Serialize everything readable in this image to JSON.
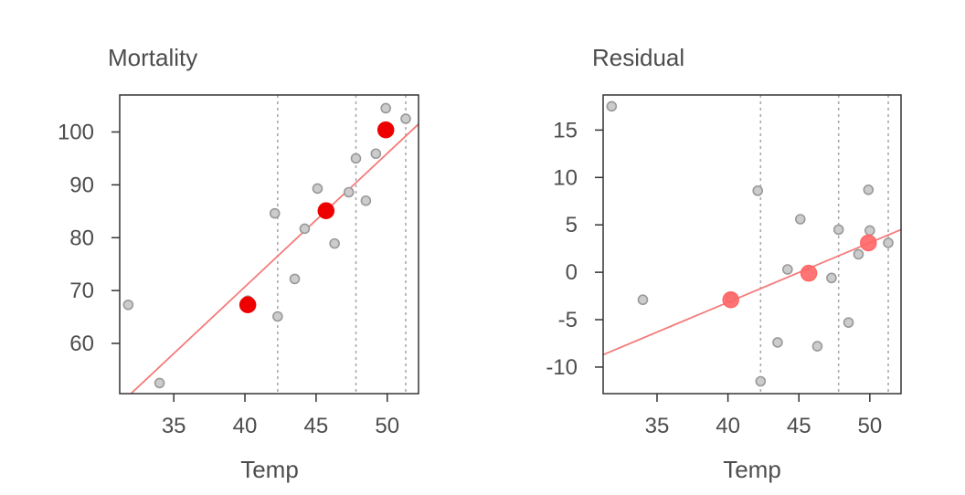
{
  "colors": {
    "fit_line": "#f47b7b",
    "point_fill": "#cccccc",
    "point_stroke": "#999999",
    "highlight_mortality": "#ee0000",
    "highlight_residual": "#ff6666",
    "vline": "#aaaaaa",
    "frame": "#333333"
  },
  "chart_data": [
    {
      "type": "scatter",
      "title": "Mortality",
      "xlabel": "Temp",
      "ylabel": "",
      "xlim": [
        31.2,
        52.2
      ],
      "ylim": [
        50.5,
        107
      ],
      "xticks": [
        35,
        40,
        45,
        50
      ],
      "yticks": [
        60,
        70,
        80,
        90,
        100
      ],
      "vlines": [
        42.3,
        47.8,
        51.3
      ],
      "fit_line": {
        "x": [
          31.2,
          52.2
        ],
        "y": [
          48.5,
          101.5
        ]
      },
      "points": {
        "x": [
          31.8,
          34.0,
          40.2,
          42.1,
          42.3,
          43.5,
          44.2,
          45.1,
          46.3,
          47.3,
          47.8,
          48.5,
          49.2,
          49.9,
          51.3
        ],
        "y": [
          67.3,
          52.5,
          68.1,
          84.6,
          65.1,
          72.2,
          81.7,
          89.3,
          78.9,
          88.6,
          95.0,
          87.0,
          95.9,
          104.5,
          102.5
        ]
      },
      "highlight": {
        "x": [
          40.2,
          45.7,
          49.9
        ],
        "y": [
          67.3,
          85.1,
          100.4
        ]
      }
    },
    {
      "type": "scatter",
      "title": "Residual",
      "xlabel": "Temp",
      "ylabel": "",
      "xlim": [
        31.2,
        52.2
      ],
      "ylim": [
        -12.8,
        18.7
      ],
      "xticks": [
        35,
        40,
        45,
        50
      ],
      "yticks": [
        15,
        10,
        5,
        0,
        -5,
        -10
      ],
      "vlines": [
        42.3,
        47.8,
        51.3
      ],
      "fit_line": {
        "x": [
          31.2,
          52.2
        ],
        "y": [
          -8.7,
          4.5
        ]
      },
      "points": {
        "x": [
          31.8,
          34.0,
          40.2,
          42.1,
          42.3,
          43.5,
          44.2,
          45.1,
          46.3,
          47.3,
          47.8,
          48.5,
          49.2,
          49.9,
          50.0,
          51.3
        ],
        "y": [
          17.5,
          -2.9,
          -2.7,
          8.6,
          -11.5,
          -7.4,
          0.3,
          5.6,
          -7.8,
          -0.6,
          4.5,
          -5.3,
          1.9,
          8.7,
          4.4,
          3.1
        ]
      },
      "highlight": {
        "x": [
          40.2,
          45.7,
          49.9
        ],
        "y": [
          -2.9,
          -0.1,
          3.1
        ]
      }
    }
  ]
}
